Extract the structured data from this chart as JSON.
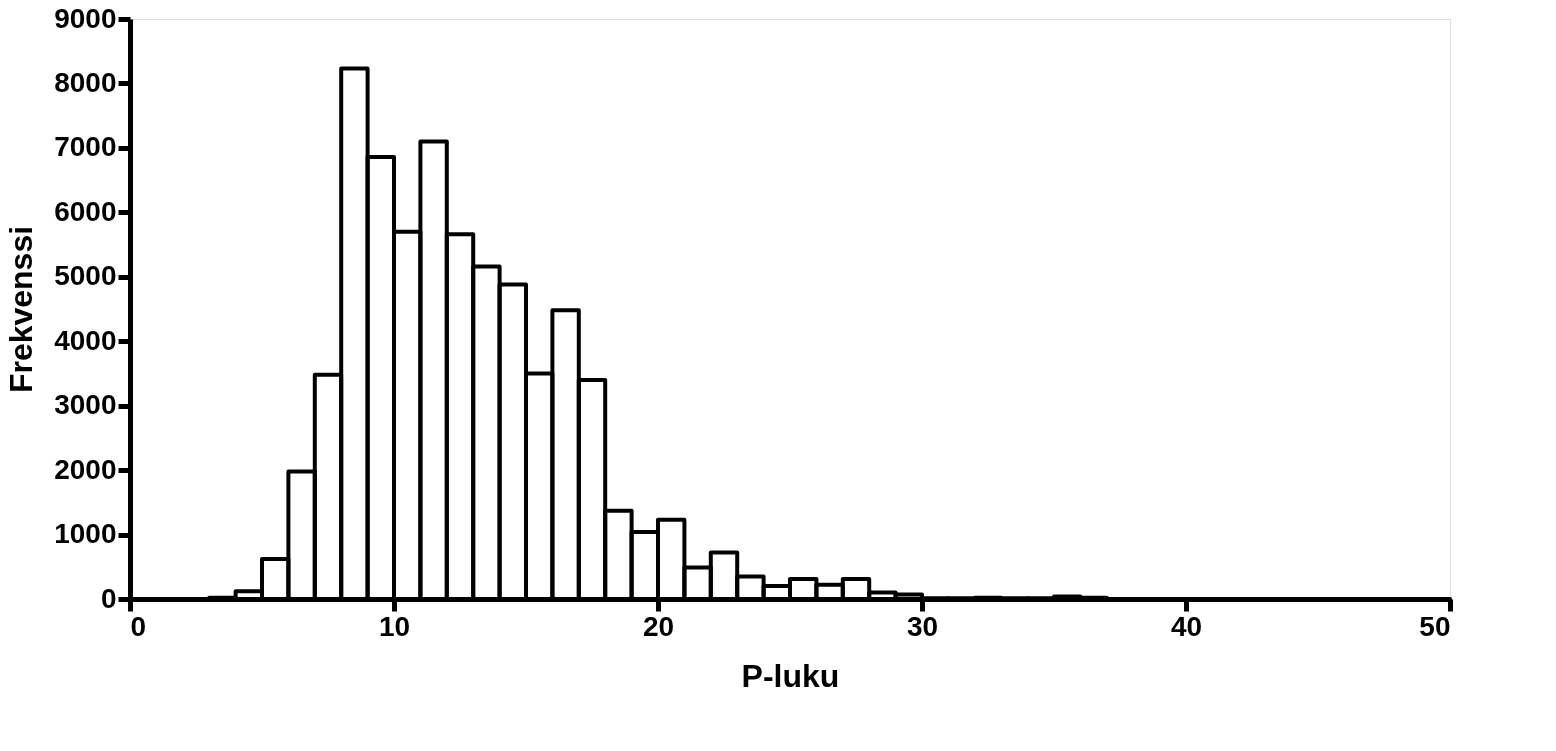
{
  "chart_data": {
    "type": "histogram",
    "xlabel": "P-luku",
    "ylabel": "Frekvenssi",
    "bins": [
      0,
      1,
      2,
      3,
      4,
      5,
      6,
      7,
      8,
      9,
      10,
      11,
      12,
      13,
      14,
      15,
      16,
      17,
      18,
      19,
      20,
      21,
      22,
      23,
      24,
      25,
      26,
      27,
      28,
      29,
      30,
      31,
      32,
      33,
      34,
      35,
      36,
      37,
      38,
      39,
      40,
      41,
      42,
      43,
      44,
      45,
      46,
      47,
      48,
      49,
      50
    ],
    "values": [
      0,
      0,
      0,
      20,
      120,
      620,
      1980,
      3480,
      8230,
      6860,
      5700,
      7100,
      5660,
      5160,
      4880,
      3500,
      4480,
      3400,
      1370,
      1040,
      1230,
      490,
      720,
      350,
      200,
      310,
      220,
      310,
      100,
      70,
      10,
      10,
      20,
      10,
      10,
      40,
      20,
      0,
      0,
      0,
      0,
      0,
      0,
      0,
      0,
      0,
      0,
      0,
      0,
      0
    ],
    "color": "#000000",
    "xlim": [
      0,
      50
    ],
    "xticks": [
      0,
      10,
      20,
      30,
      40,
      50
    ],
    "ylim": [
      0,
      9000
    ],
    "yticks": [
      0,
      1000,
      2000,
      3000,
      4000,
      5000,
      6000,
      7000,
      8000,
      9000
    ],
    "grid": false
  }
}
